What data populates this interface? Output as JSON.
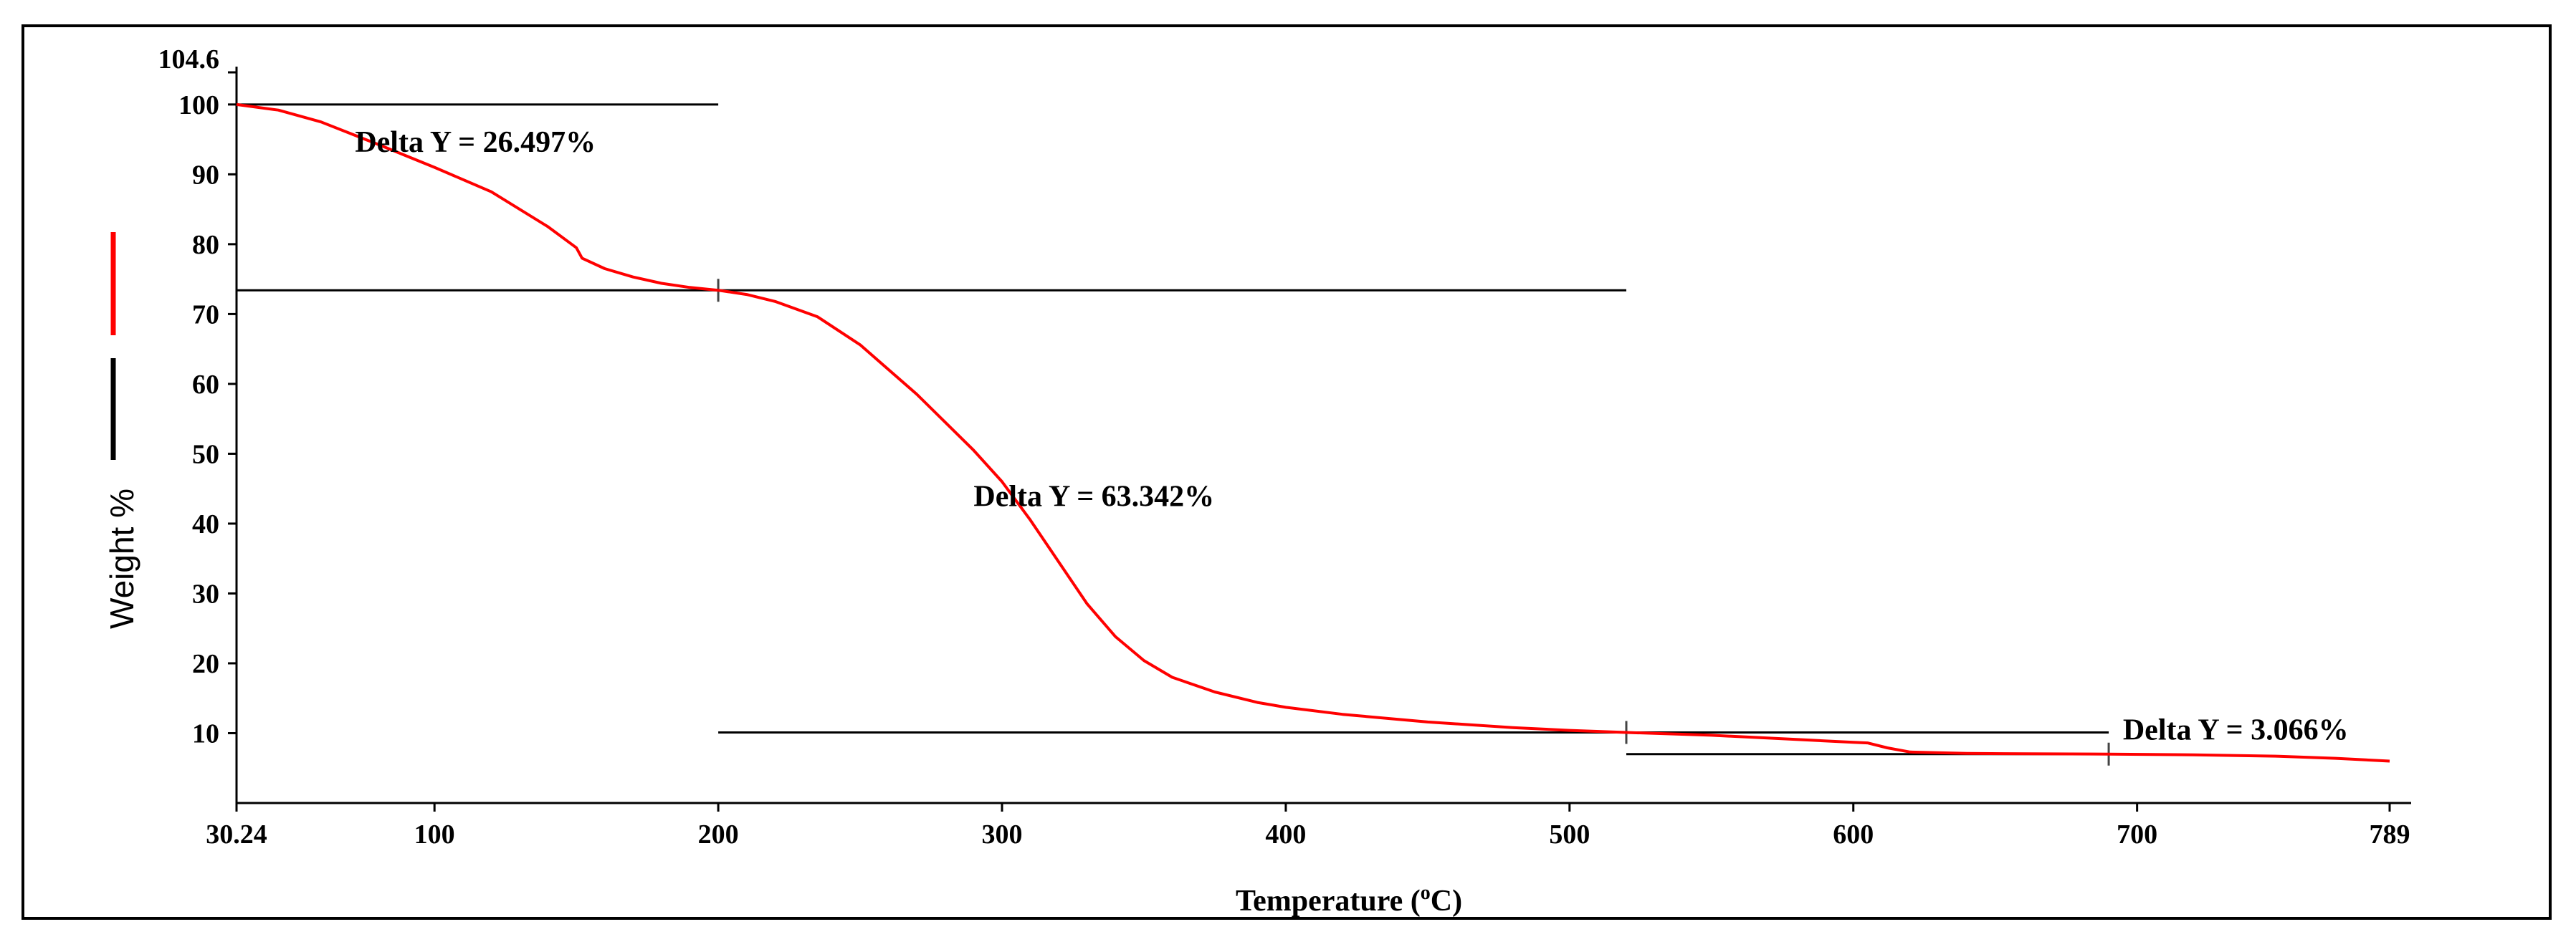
{
  "colors": {
    "curve": "#ff0000",
    "axis": "#000000",
    "background": "#ffffff"
  },
  "chart_data": {
    "type": "line",
    "title": "",
    "xlabel": "Temperature (",
    "xlabel_sup": "o",
    "xlabel_unit": "C)",
    "ylabel": "Weight %",
    "xlim": [
      30.24,
      789
    ],
    "ylim": [
      0,
      104.6
    ],
    "x_ticks": [
      {
        "value": 30.24,
        "label": "30.24"
      },
      {
        "value": 100,
        "label": "100"
      },
      {
        "value": 200,
        "label": "200"
      },
      {
        "value": 300,
        "label": "300"
      },
      {
        "value": 400,
        "label": "400"
      },
      {
        "value": 500,
        "label": "500"
      },
      {
        "value": 600,
        "label": "600"
      },
      {
        "value": 700,
        "label": "700"
      },
      {
        "value": 789,
        "label": "789"
      }
    ],
    "y_ticks": [
      {
        "value": 10,
        "label": "10"
      },
      {
        "value": 20,
        "label": "20"
      },
      {
        "value": 30,
        "label": "30"
      },
      {
        "value": 40,
        "label": "40"
      },
      {
        "value": 50,
        "label": "50"
      },
      {
        "value": 60,
        "label": "60"
      },
      {
        "value": 70,
        "label": "70"
      },
      {
        "value": 80,
        "label": "80"
      },
      {
        "value": 90,
        "label": "90"
      },
      {
        "value": 100,
        "label": "100"
      },
      {
        "value": 104.6,
        "label": "104.6"
      }
    ],
    "series": [
      {
        "name": "Weight %",
        "x": [
          30.24,
          45,
          60,
          80,
          100,
          120,
          140,
          150,
          152,
          160,
          170,
          180,
          190,
          200,
          210,
          220,
          235,
          250,
          270,
          290,
          300,
          310,
          320,
          330,
          340,
          350,
          360,
          375,
          390,
          400,
          420,
          450,
          480,
          500,
          520,
          550,
          580,
          600,
          605,
          612,
          620,
          640,
          660,
          690,
          720,
          750,
          770,
          789
        ],
        "y": [
          100,
          99.2,
          97.5,
          94.3,
          91.0,
          87.5,
          82.5,
          79.5,
          78,
          76.5,
          75.3,
          74.4,
          73.8,
          73.4,
          72.8,
          71.8,
          69.6,
          65.6,
          58.5,
          50.5,
          46.0,
          40.5,
          34.5,
          28.5,
          23.8,
          20.4,
          18.0,
          15.9,
          14.4,
          13.7,
          12.7,
          11.6,
          10.8,
          10.4,
          10.1,
          9.7,
          9.1,
          8.7,
          8.6,
          7.9,
          7.3,
          7.1,
          7.05,
          7.0,
          6.9,
          6.7,
          6.4,
          6.0
        ]
      }
    ],
    "step_lines": [
      {
        "y": 100,
        "x1": 30.24,
        "x2": 200
      },
      {
        "y": 73.4,
        "x1": 30.24,
        "x2": 520
      },
      {
        "y": 10.1,
        "x1": 200,
        "x2": 690
      },
      {
        "y": 7.0,
        "x1": 520,
        "x2": 690
      }
    ],
    "markers": [
      {
        "x": 200,
        "y": 73.4
      },
      {
        "x": 520,
        "y": 10.1
      },
      {
        "x": 690,
        "y": 7.0
      }
    ],
    "annotations": [
      {
        "text": "Delta Y = 26.497%",
        "x": 72,
        "y": 93.2
      },
      {
        "text": "Delta Y = 63.342%",
        "x": 290,
        "y": 42.5
      },
      {
        "text": "Delta Y = 3.066%",
        "x": 695,
        "y": 9.1
      }
    ],
    "legend_swatches": [
      "#ff0000",
      "#000000"
    ],
    "grid": false
  }
}
